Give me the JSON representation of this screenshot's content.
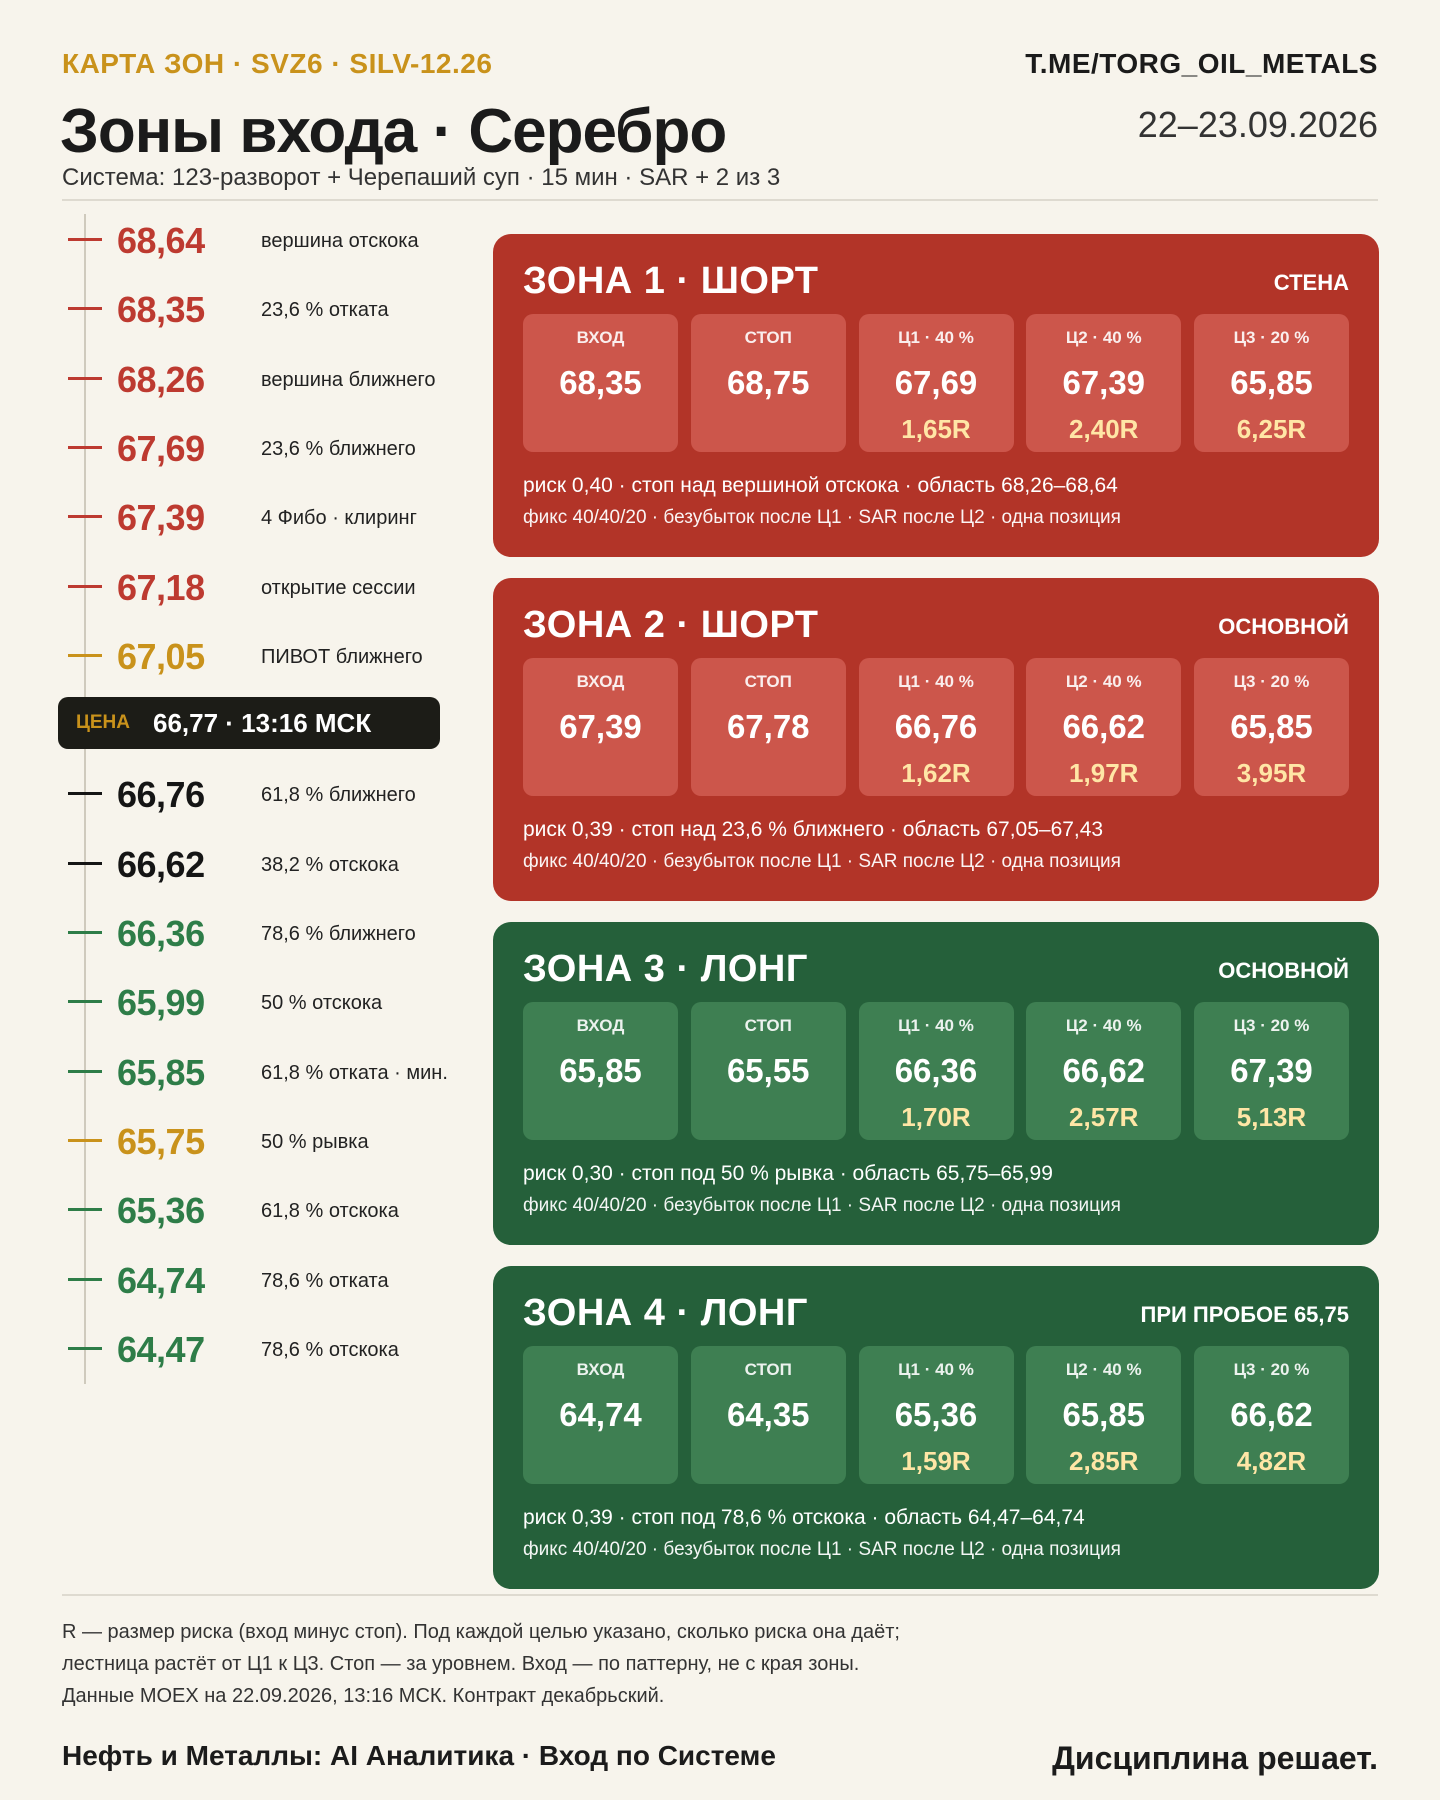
{
  "header": {
    "topline": "КАРТА ЗОН · SVZ6 · SILV-12.26",
    "brand_link": "T.ME/TORG_OIL_METALS",
    "title": "Зоны входа · Серебро",
    "date": "22–23.09.2026",
    "subtitle": "Система: 123-разворот + Черепаший суп · 15 мин · SAR + 2 из 3"
  },
  "colors": {
    "accent_gold": "#c9921b",
    "red": "#bd3a30",
    "red_dark": "#b23428",
    "red_cell": "#cc564b",
    "green": "#25603a",
    "green_cell": "#3e7f52",
    "green_text": "#2e7d48",
    "black": "#151515",
    "r_highlight": "#ffe6a6"
  },
  "ladder": {
    "levels_above": [
      {
        "value": "68,64",
        "label": "вершина отскока",
        "color": "red"
      },
      {
        "value": "68,35",
        "label": "23,6 % отката",
        "color": "red"
      },
      {
        "value": "68,26",
        "label": "вершина ближнего",
        "color": "red"
      },
      {
        "value": "67,69",
        "label": "23,6 % ближнего",
        "color": "red"
      },
      {
        "value": "67,39",
        "label": "4 Фибо · клиринг",
        "color": "red"
      },
      {
        "value": "67,18",
        "label": "открытие сессии",
        "color": "red"
      },
      {
        "value": "67,05",
        "label": "ПИВОТ ближнего",
        "color": "gold"
      }
    ],
    "price": {
      "label": "ЦЕНА",
      "value": "66,77 · 13:16 МСК"
    },
    "levels_below": [
      {
        "value": "66,76",
        "label": "61,8 % ближнего",
        "color": "black"
      },
      {
        "value": "66,62",
        "label": "38,2 % отскока",
        "color": "black"
      },
      {
        "value": "66,36",
        "label": "78,6 % ближнего",
        "color": "green"
      },
      {
        "value": "65,99",
        "label": "50 % отскока",
        "color": "green"
      },
      {
        "value": "65,85",
        "label": "61,8 % отката · мин.",
        "color": "green"
      },
      {
        "value": "65,75",
        "label": "50 % рывка",
        "color": "gold"
      },
      {
        "value": "65,36",
        "label": "61,8 % отскока",
        "color": "green"
      },
      {
        "value": "64,74",
        "label": "78,6 % отката",
        "color": "green"
      },
      {
        "value": "64,47",
        "label": "78,6 % отскока",
        "color": "green"
      }
    ]
  },
  "zones": [
    {
      "title": "ЗОНА 1 · ШОРТ",
      "badge": "СТЕНА",
      "theme": "red",
      "cells": [
        {
          "label": "ВХОД",
          "value": "68,35",
          "r": ""
        },
        {
          "label": "СТОП",
          "value": "68,75",
          "r": ""
        },
        {
          "label": "Ц1 · 40 %",
          "value": "67,69",
          "r": "1,65R"
        },
        {
          "label": "Ц2 · 40 %",
          "value": "67,39",
          "r": "2,40R"
        },
        {
          "label": "Ц3 · 20 %",
          "value": "65,85",
          "r": "6,25R"
        }
      ],
      "note1": "риск 0,40 · стоп над вершиной отскока · область 68,26–68,64",
      "note2": "фикс 40/40/20 · безубыток после Ц1 · SAR после Ц2 · одна позиция"
    },
    {
      "title": "ЗОНА 2 · ШОРТ",
      "badge": "ОСНОВНОЙ",
      "theme": "red",
      "cells": [
        {
          "label": "ВХОД",
          "value": "67,39",
          "r": ""
        },
        {
          "label": "СТОП",
          "value": "67,78",
          "r": ""
        },
        {
          "label": "Ц1 · 40 %",
          "value": "66,76",
          "r": "1,62R"
        },
        {
          "label": "Ц2 · 40 %",
          "value": "66,62",
          "r": "1,97R"
        },
        {
          "label": "Ц3 · 20 %",
          "value": "65,85",
          "r": "3,95R"
        }
      ],
      "note1": "риск 0,39 · стоп над 23,6 % ближнего · область 67,05–67,43",
      "note2": "фикс 40/40/20 · безубыток после Ц1 · SAR после Ц2 · одна позиция"
    },
    {
      "title": "ЗОНА 3 · ЛОНГ",
      "badge": "ОСНОВНОЙ",
      "theme": "green",
      "cells": [
        {
          "label": "ВХОД",
          "value": "65,85",
          "r": ""
        },
        {
          "label": "СТОП",
          "value": "65,55",
          "r": ""
        },
        {
          "label": "Ц1 · 40 %",
          "value": "66,36",
          "r": "1,70R"
        },
        {
          "label": "Ц2 · 40 %",
          "value": "66,62",
          "r": "2,57R"
        },
        {
          "label": "Ц3 · 20 %",
          "value": "67,39",
          "r": "5,13R"
        }
      ],
      "note1": "риск 0,30 · стоп под 50 % рывка · область 65,75–65,99",
      "note2": "фикс 40/40/20 · безубыток после Ц1 · SAR после Ц2 · одна позиция"
    },
    {
      "title": "ЗОНА 4 · ЛОНГ",
      "badge": "ПРИ ПРОБОЕ 65,75",
      "theme": "green",
      "cells": [
        {
          "label": "ВХОД",
          "value": "64,74",
          "r": ""
        },
        {
          "label": "СТОП",
          "value": "64,35",
          "r": ""
        },
        {
          "label": "Ц1 · 40 %",
          "value": "65,36",
          "r": "1,59R"
        },
        {
          "label": "Ц2 · 40 %",
          "value": "65,85",
          "r": "2,85R"
        },
        {
          "label": "Ц3 · 20 %",
          "value": "66,62",
          "r": "4,82R"
        }
      ],
      "note1": "риск 0,39 · стоп под 78,6 % отскока · область 64,47–64,74",
      "note2": "фикс 40/40/20 · безубыток после Ц1 · SAR после Ц2 · одна позиция"
    }
  ],
  "footnote": {
    "line1": "R — размер риска (вход минус стоп). Под каждой целью указано, сколько риска она даёт;",
    "line2": "лестница растёт от Ц1 к Ц3. Стоп — за уровнем. Вход — по паттерну, не с края зоны.",
    "line3": "Данные MOEX на 22.09.2026, 13:16 МСК. Контракт декабрьский."
  },
  "footer": {
    "left": "Нефть и Металлы: AI Аналитика · Вход по Системе",
    "right": "Дисциплина решает."
  }
}
